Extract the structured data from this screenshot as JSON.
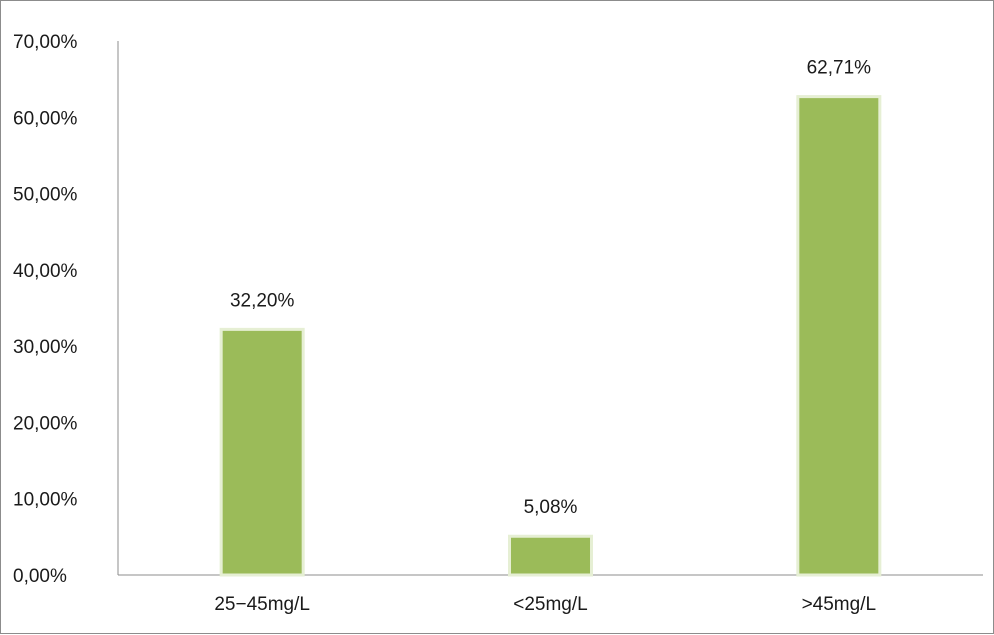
{
  "chart_data": {
    "type": "bar",
    "title": "",
    "xlabel": "",
    "ylabel": "",
    "categories": [
      "25−45mg/L",
      "<25mg/L",
      ">45mg/L"
    ],
    "values": [
      32.2,
      5.08,
      62.71
    ],
    "value_labels": [
      "32,20%",
      "5,08%",
      "62,71%"
    ],
    "ylim": [
      0,
      70
    ],
    "yticks": [
      0,
      10,
      20,
      30,
      40,
      50,
      60,
      70
    ],
    "ytick_labels": [
      "0,00%",
      "10,00%",
      "20,00%",
      "30,00%",
      "40,00%",
      "50,00%",
      "60,00%",
      "70,00%"
    ],
    "grid": false,
    "legend": "none",
    "bar_color": "#9bbb59",
    "bar_edge_color": "#e6efd4"
  }
}
